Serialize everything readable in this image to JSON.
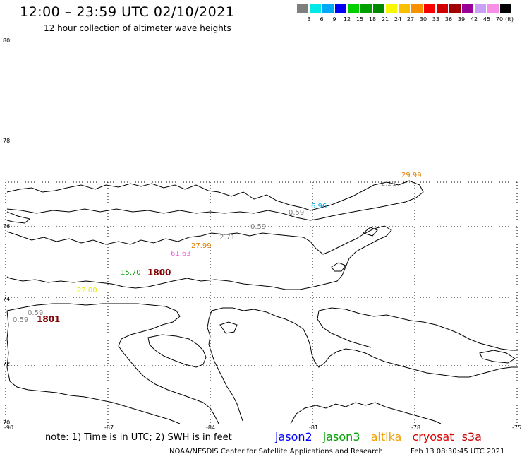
{
  "title": "12:00 – 23:59 UTC 02/10/2021",
  "subtitle": "12 hour collection of altimeter wave heights",
  "scale": {
    "unit": "(ft)",
    "labels": [
      "3",
      "6",
      "9",
      "12",
      "15",
      "18",
      "21",
      "24",
      "27",
      "30",
      "33",
      "36",
      "39",
      "42",
      "45",
      "70"
    ],
    "colors": [
      "#7f7f7f",
      "#00e8e8",
      "#00a8f8",
      "#0000f8",
      "#00d000",
      "#00a000",
      "#008800",
      "#f8f800",
      "#f8c000",
      "#f89000",
      "#f80000",
      "#d00000",
      "#a00000",
      "#980098",
      "#c8a0f8",
      "#f890e8",
      "#000000"
    ]
  },
  "lat_labels": [
    "80",
    "78",
    "76",
    "74",
    "72",
    "70"
  ],
  "lon_labels": [
    "-90",
    "-87",
    "-84",
    "-81",
    "-78",
    "-75"
  ],
  "observations": [
    {
      "value": "29.99",
      "color": "#e08000"
    },
    {
      "value": "2.21",
      "color": "#7f7f7f"
    },
    {
      "value": "6.96",
      "color": "#00a8e8"
    },
    {
      "value": "0.59",
      "color": "#7f7f7f"
    },
    {
      "value": "0.59",
      "color": "#7f7f7f"
    },
    {
      "value": "2.71",
      "color": "#7f7f7f"
    },
    {
      "value": "27.99",
      "color": "#e08000"
    },
    {
      "value": "61.63",
      "color": "#f060e0"
    },
    {
      "value": "15.70",
      "color": "#00a000"
    },
    {
      "value": "22.00",
      "color": "#e8e800"
    },
    {
      "value": "0.59",
      "color": "#7f7f7f"
    },
    {
      "value": "0.59",
      "color": "#7f7f7f"
    }
  ],
  "passes": [
    {
      "label": "1800",
      "color": "#800000"
    },
    {
      "label": "1801",
      "color": "#800000"
    }
  ],
  "note": "note:  1) Time is in UTC;  2) SWH is in feet",
  "legend": [
    {
      "name": "jason2",
      "color": "#0000ff"
    },
    {
      "name": "jason3",
      "color": "#00a000"
    },
    {
      "name": "altika",
      "color": "#f0a000"
    },
    {
      "name": "cryosat",
      "color": "#e00000"
    },
    {
      "name": "s3a",
      "color": "#c00000"
    }
  ],
  "credit": "NOAA/NESDIS Center for Satellite Applications and Research",
  "credit_time": "Feb 13 08:30:45 UTC 2021"
}
